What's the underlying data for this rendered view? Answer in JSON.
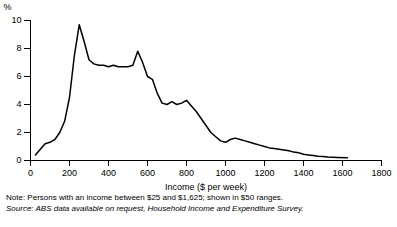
{
  "chart_data": {
    "type": "line",
    "xlabel": "Income ($ per week)",
    "ylabel": "%",
    "note": "Note: Persons with an income between $25 and $1,625; shown in $50 ranges.",
    "source": "Source: ABS data available on request, Household Income and Expenditure Survey.",
    "color": "#000000",
    "grid": false,
    "xlim": [
      0,
      1800
    ],
    "xticks": [
      0,
      200,
      400,
      600,
      800,
      1000,
      1200,
      1400,
      1600,
      1800
    ],
    "ylim": [
      0,
      10
    ],
    "yticks": [
      0,
      2,
      4,
      6,
      8,
      10
    ],
    "x": [
      25,
      75,
      100,
      125,
      150,
      175,
      200,
      225,
      250,
      275,
      300,
      325,
      350,
      375,
      400,
      425,
      450,
      475,
      500,
      525,
      550,
      575,
      600,
      625,
      650,
      675,
      700,
      725,
      750,
      775,
      800,
      825,
      850,
      875,
      900,
      925,
      950,
      975,
      1000,
      1025,
      1050,
      1075,
      1100,
      1125,
      1150,
      1175,
      1200,
      1225,
      1250,
      1275,
      1300,
      1325,
      1350,
      1375,
      1400,
      1425,
      1450,
      1475,
      1500,
      1525,
      1575,
      1625
    ],
    "values": [
      0.4,
      1.2,
      1.3,
      1.5,
      2.0,
      2.8,
      4.5,
      7.5,
      9.7,
      8.5,
      7.2,
      6.9,
      6.8,
      6.8,
      6.7,
      6.8,
      6.7,
      6.7,
      6.7,
      6.8,
      7.8,
      7.0,
      6.0,
      5.8,
      4.8,
      4.1,
      4.0,
      4.2,
      4.0,
      4.1,
      4.3,
      3.9,
      3.5,
      3.0,
      2.5,
      2.0,
      1.7,
      1.4,
      1.3,
      1.5,
      1.6,
      1.5,
      1.4,
      1.3,
      1.2,
      1.1,
      1.0,
      0.9,
      0.85,
      0.8,
      0.75,
      0.7,
      0.6,
      0.55,
      0.45,
      0.4,
      0.35,
      0.3,
      0.28,
      0.25,
      0.22,
      0.2
    ]
  }
}
